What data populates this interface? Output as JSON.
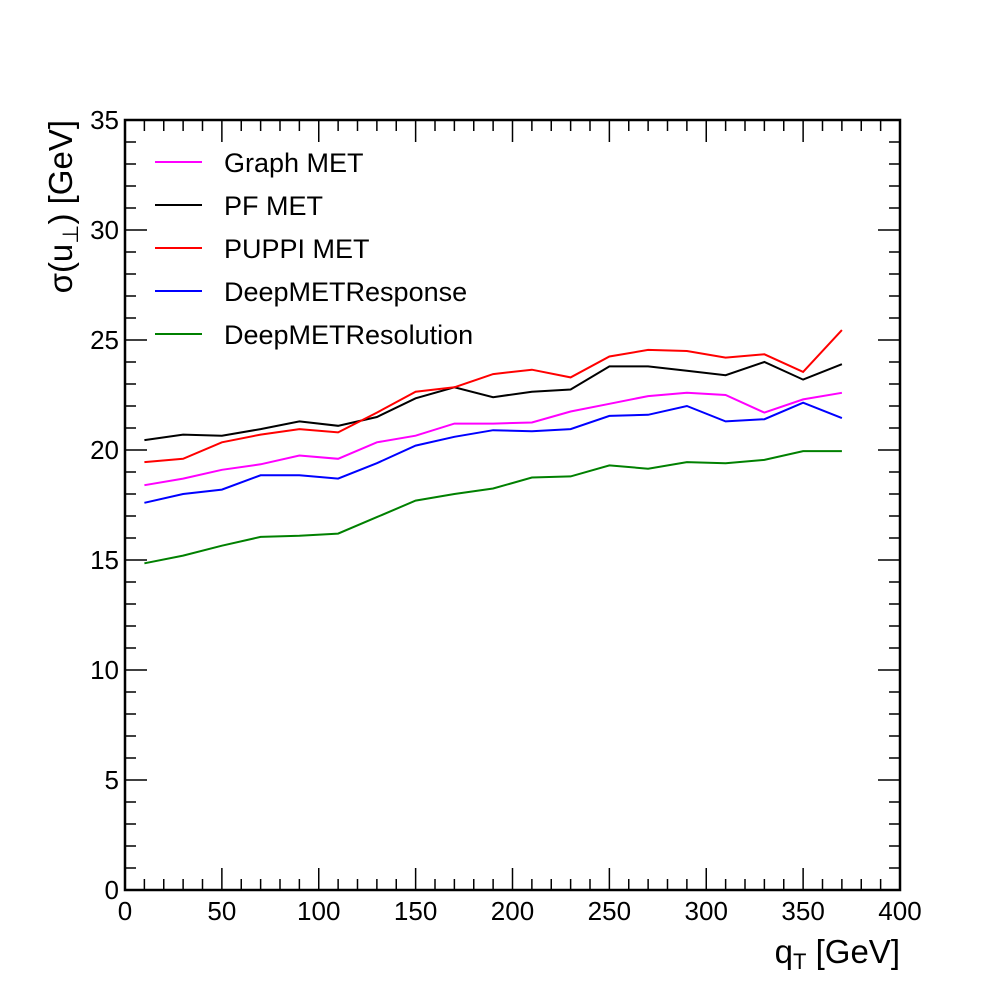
{
  "chart_data": {
    "type": "line",
    "xlabel": "q",
    "xlabel_sub": "T",
    "xlabel_unit": " [GeV]",
    "ylabel": "σ(u",
    "ylabel_sub": "⊥",
    "ylabel_unit": ") [GeV]",
    "xlim": [
      0,
      400
    ],
    "ylim": [
      0,
      35
    ],
    "xticks": [
      0,
      50,
      100,
      150,
      200,
      250,
      300,
      350,
      400
    ],
    "yticks": [
      0,
      5,
      10,
      15,
      20,
      25,
      30,
      35
    ],
    "grid": false,
    "legend_position": "top-left",
    "x": [
      10,
      30,
      50,
      70,
      90,
      110,
      130,
      150,
      170,
      190,
      210,
      230,
      250,
      270,
      290,
      310,
      330,
      350,
      370
    ],
    "series": [
      {
        "name": "Graph MET",
        "color": "#ff00ff",
        "values": [
          18.4,
          18.7,
          19.1,
          19.35,
          19.75,
          19.6,
          20.35,
          20.65,
          21.2,
          21.2,
          21.25,
          21.75,
          22.1,
          22.45,
          22.6,
          22.5,
          21.7,
          22.3,
          22.6
        ]
      },
      {
        "name": "PF MET",
        "color": "#000000",
        "values": [
          20.45,
          20.7,
          20.65,
          20.95,
          21.3,
          21.1,
          21.5,
          22.35,
          22.85,
          22.4,
          22.65,
          22.75,
          23.8,
          23.8,
          23.6,
          23.4,
          24.0,
          23.2,
          23.9
        ]
      },
      {
        "name": "PUPPI MET",
        "color": "#ff0000",
        "values": [
          19.45,
          19.6,
          20.35,
          20.7,
          20.95,
          20.8,
          21.7,
          22.65,
          22.85,
          23.45,
          23.65,
          23.3,
          24.25,
          24.55,
          24.5,
          24.2,
          24.35,
          23.55,
          25.45
        ]
      },
      {
        "name": "DeepMETResponse",
        "color": "#0000ff",
        "values": [
          17.6,
          18.0,
          18.2,
          18.85,
          18.85,
          18.7,
          19.4,
          20.2,
          20.6,
          20.9,
          20.85,
          20.95,
          21.55,
          21.6,
          22.0,
          21.3,
          21.4,
          22.15,
          21.45
        ]
      },
      {
        "name": "DeepMETResolution",
        "color": "#008000",
        "values": [
          14.85,
          15.2,
          15.65,
          16.05,
          16.1,
          16.2,
          16.95,
          17.7,
          18.0,
          18.25,
          18.75,
          18.8,
          19.3,
          19.15,
          19.45,
          19.4,
          19.55,
          19.95,
          19.95
        ]
      }
    ]
  }
}
